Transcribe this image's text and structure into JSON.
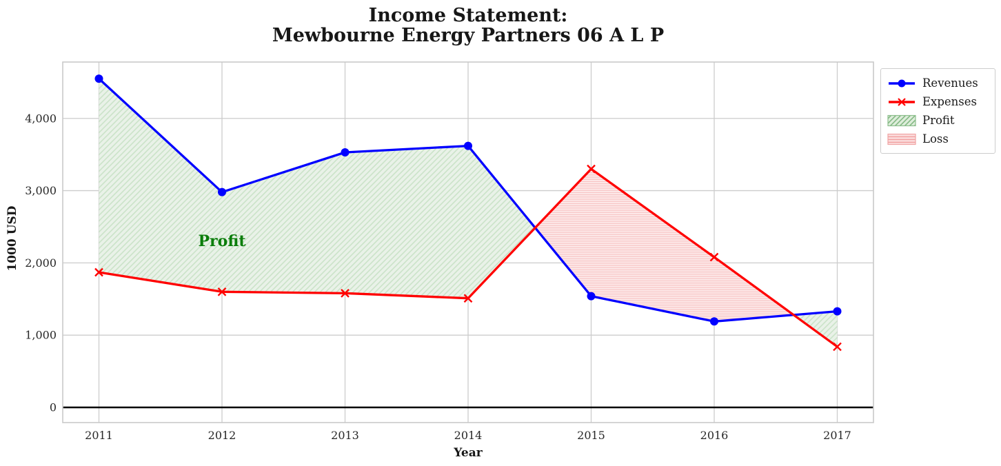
{
  "chart_data": {
    "type": "line",
    "title_lines": [
      "Income Statement:",
      "Mewbourne Energy Partners 06 A L P"
    ],
    "xlabel": "Year",
    "ylabel": "1000 USD",
    "x": [
      2011,
      2012,
      2013,
      2014,
      2015,
      2016,
      2017
    ],
    "xtick_labels": [
      "2011",
      "2012",
      "2013",
      "2014",
      "2015",
      "2016",
      "2017"
    ],
    "yticks": [
      0,
      1000,
      2000,
      3000,
      4000
    ],
    "ytick_labels": [
      "0",
      "1,000",
      "2,000",
      "3,000",
      "4,000"
    ],
    "ylim": [
      -210,
      4780
    ],
    "grid": true,
    "zero_line": true,
    "series": [
      {
        "name": "Revenues",
        "color": "#0000ff",
        "marker": "circle",
        "values": [
          4550,
          2980,
          3530,
          3620,
          1540,
          1190,
          1330
        ]
      },
      {
        "name": "Expenses",
        "color": "#ff0000",
        "marker": "x",
        "values": [
          1870,
          1600,
          1580,
          1510,
          3300,
          2080,
          840
        ]
      }
    ],
    "fills": [
      {
        "name": "Profit",
        "condition": "revenues > expenses",
        "hatch": "//",
        "facecolor": "#e9f2e8",
        "hatch_color": "#cbe3c9"
      },
      {
        "name": "Loss",
        "condition": "expenses > revenues",
        "hatch": "-",
        "facecolor": "#fdeaea",
        "hatch_color": "#f6bcbc"
      }
    ],
    "annotations": [
      {
        "text": "Profit",
        "x": 2012.0,
        "y": 2300,
        "color": "#0a7d0a"
      }
    ],
    "legend": {
      "position": "upper right, outside plot",
      "entries": [
        {
          "label": "Revenues",
          "swatch": "line-circle",
          "color": "#0000ff"
        },
        {
          "label": "Expenses",
          "swatch": "line-x",
          "color": "#ff0000"
        },
        {
          "label": "Profit",
          "swatch": "patch-diagonal",
          "color": "#8cbe8c"
        },
        {
          "label": "Loss",
          "swatch": "patch-horizontal",
          "color": "#f0a4a4"
        }
      ]
    }
  }
}
